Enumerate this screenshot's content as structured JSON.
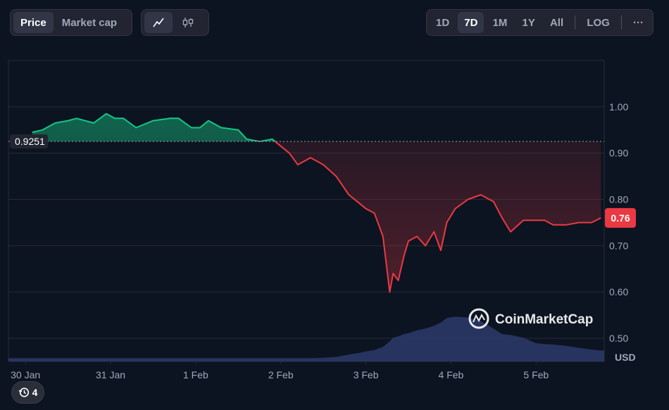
{
  "toolbar": {
    "metric_tabs": [
      {
        "label": "Price",
        "active": true
      },
      {
        "label": "Market cap",
        "active": false
      }
    ],
    "chart_types": [
      {
        "icon": "line-chart-icon",
        "active": true
      },
      {
        "icon": "candlestick-icon",
        "active": false
      }
    ],
    "ranges": [
      {
        "label": "1D",
        "active": false
      },
      {
        "label": "7D",
        "active": true
      },
      {
        "label": "1M",
        "active": false
      },
      {
        "label": "1Y",
        "active": false
      },
      {
        "label": "All",
        "active": false
      }
    ],
    "log_label": "LOG",
    "more_label": "···"
  },
  "history_badge": {
    "icon": "history-icon",
    "count": "4"
  },
  "watermark": {
    "text": "CoinMarketCap",
    "icon": "coinmarketcap-logo"
  },
  "colors": {
    "up": "#16c784",
    "down": "#ea3943",
    "volume": "#2d3a6b",
    "background": "#0d1421",
    "grid": "#262a36"
  },
  "chart_data": {
    "type": "area",
    "currency_label": "USD",
    "reference_price": 0.9251,
    "reference_label": "0.9251",
    "current_price": 0.76,
    "current_label": "0.76",
    "ylim": [
      0.45,
      1.1
    ],
    "yticks": [
      {
        "value": 1.0,
        "label": "1.00"
      },
      {
        "value": 0.9,
        "label": "0.90"
      },
      {
        "value": 0.8,
        "label": "0.80"
      },
      {
        "value": 0.7,
        "label": "0.70"
      },
      {
        "value": 0.6,
        "label": "0.60"
      },
      {
        "value": 0.5,
        "label": "0.50"
      }
    ],
    "xlim": [
      -0.2,
      6.8
    ],
    "xticks": [
      {
        "value": 0,
        "label": "30 Jan"
      },
      {
        "value": 1,
        "label": "31 Jan"
      },
      {
        "value": 2,
        "label": "1 Feb"
      },
      {
        "value": 3,
        "label": "2 Feb"
      },
      {
        "value": 4,
        "label": "3 Feb"
      },
      {
        "value": 5,
        "label": "4 Feb"
      },
      {
        "value": 6,
        "label": "5 Feb"
      }
    ],
    "x": [
      0.08,
      0.2,
      0.35,
      0.5,
      0.6,
      0.8,
      0.95,
      1.05,
      1.15,
      1.3,
      1.5,
      1.7,
      1.8,
      1.95,
      2.05,
      2.15,
      2.3,
      2.5,
      2.6,
      2.75,
      2.9,
      3.0,
      3.1,
      3.2,
      3.35,
      3.5,
      3.65,
      3.8,
      3.9,
      4.0,
      4.1,
      4.2,
      4.28,
      4.32,
      4.38,
      4.45,
      4.5,
      4.6,
      4.7,
      4.8,
      4.88,
      4.95,
      5.05,
      5.2,
      5.35,
      5.5,
      5.6,
      5.7,
      5.85,
      6.0,
      6.1,
      6.2,
      6.35,
      6.5,
      6.65,
      6.76
    ],
    "y": [
      0.945,
      0.95,
      0.965,
      0.97,
      0.975,
      0.965,
      0.985,
      0.975,
      0.975,
      0.955,
      0.97,
      0.975,
      0.975,
      0.955,
      0.955,
      0.97,
      0.955,
      0.95,
      0.93,
      0.925,
      0.93,
      0.915,
      0.9,
      0.875,
      0.89,
      0.875,
      0.85,
      0.81,
      0.795,
      0.78,
      0.77,
      0.72,
      0.6,
      0.64,
      0.625,
      0.68,
      0.71,
      0.72,
      0.7,
      0.73,
      0.69,
      0.75,
      0.78,
      0.8,
      0.81,
      0.795,
      0.76,
      0.73,
      0.755,
      0.755,
      0.755,
      0.745,
      0.745,
      0.75,
      0.75,
      0.76
    ],
    "volume": [
      0.07,
      0.07,
      0.07,
      0.07,
      0.07,
      0.07,
      0.07,
      0.07,
      0.07,
      0.07,
      0.07,
      0.07,
      0.07,
      0.07,
      0.07,
      0.07,
      0.07,
      0.07,
      0.07,
      0.07,
      0.07,
      0.07,
      0.07,
      0.07,
      0.07,
      0.08,
      0.1,
      0.15,
      0.18,
      0.22,
      0.25,
      0.32,
      0.44,
      0.52,
      0.55,
      0.6,
      0.62,
      0.68,
      0.72,
      0.78,
      0.85,
      0.95,
      0.98,
      0.96,
      0.88,
      0.72,
      0.6,
      0.58,
      0.52,
      0.4,
      0.38,
      0.37,
      0.34,
      0.3,
      0.26,
      0.24
    ]
  }
}
